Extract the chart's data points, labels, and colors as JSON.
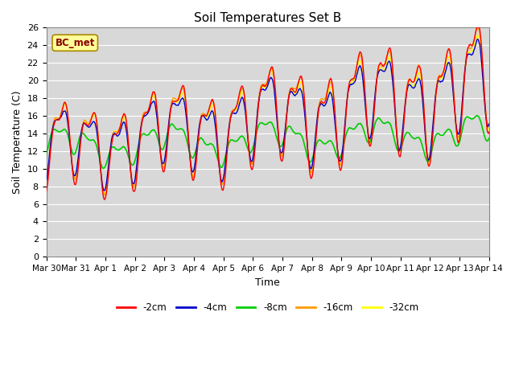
{
  "title": "Soil Temperatures Set B",
  "xlabel": "Time",
  "ylabel": "Soil Temperature (C)",
  "annotation_text": "BC_met",
  "annotation_fg": "#8B0000",
  "annotation_bg": "#ffff99",
  "annotation_border": "#aa8800",
  "ylim": [
    0,
    26
  ],
  "yticks": [
    0,
    2,
    4,
    6,
    8,
    10,
    12,
    14,
    16,
    18,
    20,
    22,
    24,
    26
  ],
  "xtick_labels": [
    "Mar 30",
    "Mar 31",
    "Apr 1",
    "Apr 2",
    "Apr 3",
    "Apr 4",
    "Apr 5",
    "Apr 6",
    "Apr 7",
    "Apr 8",
    "Apr 9",
    "Apr 10",
    "Apr 11",
    "Apr 12",
    "Apr 13",
    "Apr 14"
  ],
  "series_colors": [
    "#ff0000",
    "#0000cc",
    "#00cc00",
    "#ff9900",
    "#ffff00"
  ],
  "series_labels": [
    "-2cm",
    "-4cm",
    "-8cm",
    "-16cm",
    "-32cm"
  ],
  "plot_bg_color": "#d8d8d8",
  "grid_color": "#ffffff",
  "n_days": 15,
  "n_per_day": 48
}
